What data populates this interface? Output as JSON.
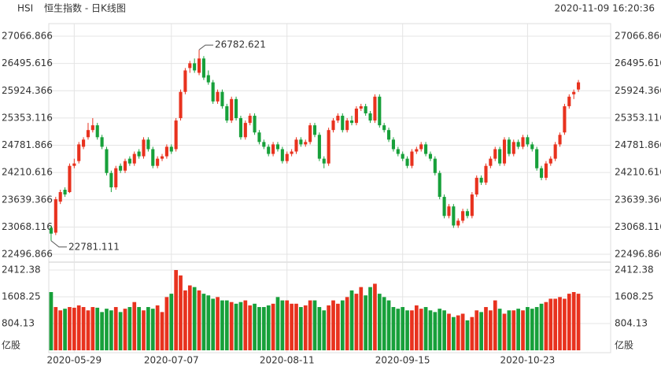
{
  "header": {
    "symbol": "HSI",
    "title": "恒生指数 - 日K线图",
    "timestamp": "2020-11-09 16:20:36"
  },
  "chart_data": {
    "type": "candlestick",
    "categories": [
      null,
      null,
      null,
      null,
      null,
      "2020-05-29",
      null,
      null,
      null,
      null,
      null,
      null,
      null,
      null,
      null,
      null,
      null,
      null,
      null,
      null,
      null,
      null,
      null,
      null,
      null,
      null,
      "2020-07-07",
      null,
      null,
      null,
      null,
      null,
      null,
      null,
      null,
      null,
      null,
      null,
      null,
      null,
      null,
      null,
      null,
      null,
      null,
      null,
      null,
      null,
      null,
      null,
      null,
      "2020-08-11",
      null,
      null,
      null,
      null,
      null,
      null,
      null,
      null,
      null,
      null,
      null,
      null,
      null,
      null,
      null,
      null,
      null,
      null,
      null,
      null,
      null,
      null,
      null,
      null,
      "2020-09-15",
      null,
      null,
      null,
      null,
      null,
      null,
      null,
      null,
      null,
      null,
      null,
      null,
      null,
      null,
      null,
      null,
      null,
      null,
      null,
      null,
      null,
      null,
      null,
      null,
      null,
      null,
      "2020-10-23",
      null,
      null,
      null,
      null,
      null,
      null,
      null,
      null,
      null,
      null,
      null
    ],
    "ohlc": [
      [
        23050,
        23100,
        22781.111,
        22930
      ],
      [
        22950,
        23700,
        22900,
        23650
      ],
      [
        23600,
        23850,
        23550,
        23800
      ],
      [
        23850,
        23900,
        23700,
        23750
      ],
      [
        23800,
        24400,
        23780,
        24350
      ],
      [
        24350,
        24500,
        24300,
        24400
      ],
      [
        24450,
        24850,
        24400,
        24800
      ],
      [
        24750,
        24950,
        24700,
        24900
      ],
      [
        24950,
        25250,
        24900,
        25100
      ],
      [
        25100,
        25350,
        25050,
        25200
      ],
      [
        25200,
        25250,
        24900,
        24950
      ],
      [
        24950,
        25000,
        24700,
        24750
      ],
      [
        24700,
        24750,
        24150,
        24200
      ],
      [
        24200,
        24250,
        23800,
        23900
      ],
      [
        23900,
        24350,
        23850,
        24300
      ],
      [
        24350,
        24400,
        24200,
        24250
      ],
      [
        24250,
        24500,
        24200,
        24450
      ],
      [
        24500,
        24550,
        24350,
        24400
      ],
      [
        24400,
        24650,
        24350,
        24600
      ],
      [
        24650,
        24700,
        24500,
        24550
      ],
      [
        24550,
        24950,
        24500,
        24900
      ],
      [
        24900,
        24950,
        24650,
        24700
      ],
      [
        24700,
        24750,
        24300,
        24350
      ],
      [
        24350,
        24550,
        24300,
        24500
      ],
      [
        24500,
        24600,
        24450,
        24550
      ],
      [
        24550,
        24800,
        24500,
        24750
      ],
      [
        24750,
        24800,
        24600,
        24650
      ],
      [
        24700,
        25350,
        24650,
        25300
      ],
      [
        25350,
        25950,
        25300,
        25900
      ],
      [
        25900,
        26400,
        25850,
        26350
      ],
      [
        26400,
        26550,
        26300,
        26500
      ],
      [
        26500,
        26600,
        26300,
        26350
      ],
      [
        26300,
        26782.621,
        26250,
        26600
      ],
      [
        26600,
        26650,
        26150,
        26200
      ],
      [
        26250,
        26350,
        26050,
        26100
      ],
      [
        26100,
        26150,
        25650,
        25700
      ],
      [
        25700,
        25950,
        25650,
        25900
      ],
      [
        25900,
        25950,
        25550,
        25600
      ],
      [
        25600,
        25650,
        25250,
        25300
      ],
      [
        25300,
        25800,
        25250,
        25750
      ],
      [
        25750,
        25800,
        25300,
        25350
      ],
      [
        25350,
        25400,
        24900,
        24950
      ],
      [
        24950,
        25300,
        24900,
        25250
      ],
      [
        25250,
        25450,
        25200,
        25400
      ],
      [
        25400,
        25450,
        25000,
        25050
      ],
      [
        25050,
        25100,
        24800,
        24850
      ],
      [
        24850,
        24900,
        24700,
        24750
      ],
      [
        24750,
        24800,
        24550,
        24600
      ],
      [
        24600,
        24850,
        24550,
        24800
      ],
      [
        24800,
        24850,
        24650,
        24700
      ],
      [
        24700,
        24750,
        24400,
        24450
      ],
      [
        24450,
        24650,
        24400,
        24600
      ],
      [
        24600,
        24700,
        24550,
        24650
      ],
      [
        24650,
        24950,
        24600,
        24900
      ],
      [
        24900,
        24950,
        24750,
        24800
      ],
      [
        24800,
        24900,
        24750,
        24850
      ],
      [
        24850,
        25250,
        24800,
        25200
      ],
      [
        25200,
        25250,
        24950,
        25000
      ],
      [
        25000,
        25050,
        24450,
        24500
      ],
      [
        24500,
        24550,
        24300,
        24400
      ],
      [
        24400,
        25150,
        24350,
        25100
      ],
      [
        25100,
        25350,
        25050,
        25300
      ],
      [
        25300,
        25450,
        25250,
        25400
      ],
      [
        25400,
        25450,
        25050,
        25100
      ],
      [
        25100,
        25350,
        25050,
        25300
      ],
      [
        25300,
        25400,
        25200,
        25250
      ],
      [
        25250,
        25600,
        25200,
        25550
      ],
      [
        25550,
        25650,
        25500,
        25600
      ],
      [
        25600,
        25650,
        25400,
        25450
      ],
      [
        25450,
        25500,
        25250,
        25300
      ],
      [
        25300,
        25850,
        25250,
        25800
      ],
      [
        25800,
        25850,
        25150,
        25200
      ],
      [
        25200,
        25250,
        25050,
        25100
      ],
      [
        25100,
        25150,
        24850,
        24900
      ],
      [
        24900,
        24950,
        24650,
        24700
      ],
      [
        24700,
        24750,
        24550,
        24600
      ],
      [
        24600,
        24650,
        24450,
        24500
      ],
      [
        24500,
        24550,
        24300,
        24350
      ],
      [
        24350,
        24700,
        24300,
        24650
      ],
      [
        24650,
        24750,
        24600,
        24700
      ],
      [
        24700,
        24850,
        24650,
        24800
      ],
      [
        24800,
        24850,
        24550,
        24600
      ],
      [
        24600,
        24650,
        24450,
        24500
      ],
      [
        24500,
        24550,
        24150,
        24200
      ],
      [
        24200,
        24250,
        23650,
        23700
      ],
      [
        23700,
        23750,
        23250,
        23300
      ],
      [
        23300,
        23550,
        23250,
        23500
      ],
      [
        23500,
        23550,
        23050,
        23100
      ],
      [
        23100,
        23250,
        23050,
        23200
      ],
      [
        23200,
        23450,
        23150,
        23400
      ],
      [
        23400,
        23450,
        23250,
        23300
      ],
      [
        23300,
        23800,
        23250,
        23750
      ],
      [
        23750,
        24150,
        23700,
        24100
      ],
      [
        24100,
        24150,
        23950,
        24000
      ],
      [
        24000,
        24400,
        23950,
        24350
      ],
      [
        24350,
        24550,
        24300,
        24500
      ],
      [
        24500,
        24750,
        24450,
        24700
      ],
      [
        24700,
        24750,
        24350,
        24400
      ],
      [
        24400,
        24950,
        24350,
        24900
      ],
      [
        24900,
        24950,
        24550,
        24600
      ],
      [
        24600,
        24900,
        24550,
        24850
      ],
      [
        24850,
        24900,
        24700,
        24750
      ],
      [
        24750,
        25000,
        24700,
        24950
      ],
      [
        24950,
        25000,
        24750,
        24800
      ],
      [
        24800,
        24850,
        24650,
        24700
      ],
      [
        24700,
        24750,
        24250,
        24300
      ],
      [
        24300,
        24350,
        24050,
        24100
      ],
      [
        24100,
        24450,
        24050,
        24400
      ],
      [
        24400,
        24550,
        24350,
        24500
      ],
      [
        24500,
        24850,
        24450,
        24800
      ],
      [
        24800,
        25050,
        24750,
        25000
      ],
      [
        25050,
        25650,
        25000,
        25600
      ],
      [
        25600,
        25850,
        25550,
        25800
      ],
      [
        25850,
        25950,
        25750,
        25900
      ],
      [
        25950,
        26150,
        25900,
        26100
      ]
    ],
    "volume": [
      1750,
      1300,
      1200,
      1250,
      1300,
      1280,
      1350,
      1300,
      1200,
      1300,
      1280,
      1150,
      1250,
      1200,
      1300,
      1150,
      1250,
      1300,
      1450,
      1300,
      1200,
      1300,
      1250,
      1350,
      1150,
      1600,
      1700,
      2412,
      2250,
      1800,
      1950,
      1900,
      1800,
      1700,
      1650,
      1550,
      1600,
      1500,
      1500,
      1450,
      1400,
      1450,
      1500,
      1350,
      1400,
      1300,
      1300,
      1350,
      1400,
      1600,
      1500,
      1500,
      1400,
      1400,
      1300,
      1350,
      1500,
      1500,
      1300,
      1200,
      1350,
      1500,
      1400,
      1500,
      1600,
      1800,
      1700,
      1900,
      1650,
      1900,
      2000,
      1700,
      1600,
      1500,
      1300,
      1250,
      1300,
      1200,
      1200,
      1350,
      1250,
      1300,
      1200,
      1150,
      1250,
      1200,
      1100,
      1000,
      1050,
      1100,
      900,
      1000,
      1200,
      1150,
      1300,
      1200,
      1500,
      1250,
      1100,
      1200,
      1200,
      1250,
      1200,
      1300,
      1250,
      1300,
      1400,
      1450,
      1550,
      1550,
      1600,
      1550,
      1700,
      1750,
      1700
    ],
    "ylim": [
      22496.866,
      27066.866
    ],
    "yticks": [
      27066.866,
      26495.616,
      25924.366,
      25353.116,
      24781.866,
      24210.616,
      23639.366,
      23068.116,
      22496.866
    ],
    "vlim": [
      0,
      2412.38
    ],
    "vticks": [
      2412.38,
      1608.25,
      804.13
    ],
    "volume_unit": "亿股",
    "high_label": 26782.621,
    "low_label": 22781.111,
    "up_color": "#e8321e",
    "down_color": "#17a03a",
    "grid": true
  }
}
